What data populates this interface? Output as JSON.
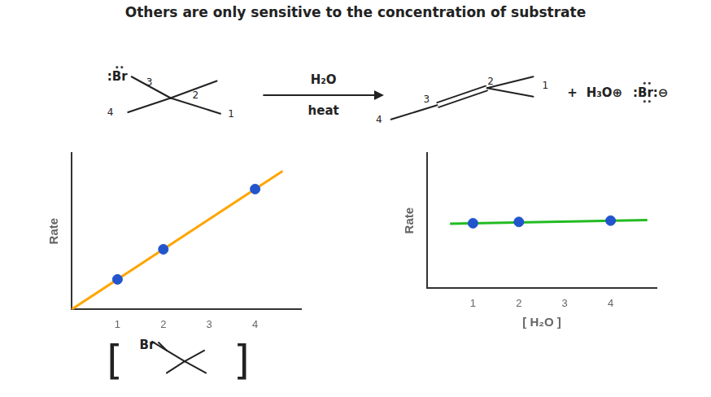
{
  "chart_data": [
    {
      "type": "scatter",
      "title": "Others are only sensitive to the concentration of substrate",
      "y_label": "Rate",
      "annotations": [
        ":Br",
        "3",
        "2",
        "1",
        "4",
        "H₂O",
        "heat",
        "4",
        "3",
        "2",
        "1",
        "+",
        "H₃O⊕",
        ":Br:⊖",
        "[",
        "Br",
        "]"
      ],
      "series": [
        {
          "type": "line",
          "color": "#FFA500",
          "line_style": "solid",
          "x": [
            0.0,
            4.6
          ],
          "values": [
            0.0,
            4.6
          ]
        },
        {
          "type": "scatter",
          "color": "#2255cc",
          "marker": "circle",
          "x": [
            1,
            2,
            4
          ],
          "values": [
            1,
            2,
            4
          ]
        }
      ],
      "xlim": [
        0,
        5.0
      ],
      "xticks": [
        1,
        2,
        3,
        4
      ],
      "ylim": [
        0,
        5.2
      ],
      "grid": false,
      "tick_labels": "x"
    },
    {
      "type": "scatter",
      "y_label": "Rate",
      "x_label": "[ H₂O ]",
      "series": [
        {
          "type": "line",
          "color": "#22bb22",
          "line_style": "solid",
          "x": [
            0.5,
            4.8
          ],
          "values": [
            2.48,
            2.62
          ]
        },
        {
          "type": "scatter",
          "color": "#2255cc",
          "marker": "circle",
          "x": [
            1,
            2,
            4
          ],
          "values": [
            2.5,
            2.55,
            2.6
          ]
        }
      ],
      "xlim": [
        0,
        5.0
      ],
      "xticks": [
        1,
        2,
        3,
        4
      ],
      "ylim": [
        0,
        5.2
      ],
      "grid": false,
      "tick_labels": "x"
    }
  ]
}
